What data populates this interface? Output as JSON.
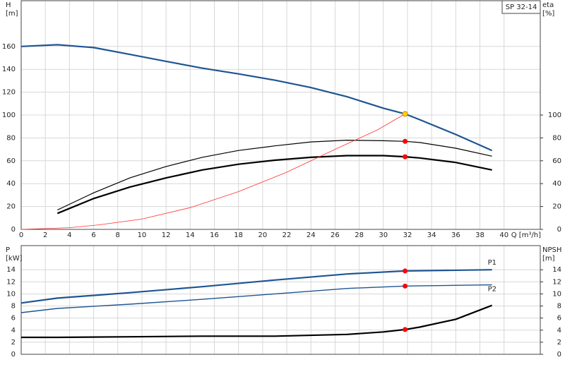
{
  "chart_data": [
    {
      "type": "line",
      "title": "SP 32-14",
      "ylabel": [
        "H",
        "[m]"
      ],
      "y2label": [
        "eta",
        "[%]"
      ],
      "xlabel": "Q [m³/h]",
      "xlim": [
        0,
        43
      ],
      "xticks": [
        0,
        2,
        4,
        6,
        8,
        10,
        12,
        14,
        16,
        18,
        20,
        22,
        24,
        26,
        28,
        30,
        32,
        34,
        36,
        38,
        40
      ],
      "ylim": [
        0,
        200
      ],
      "yticks": [
        0,
        20,
        40,
        60,
        80,
        100,
        120,
        140,
        160
      ],
      "y2lim": [
        0,
        200
      ],
      "y2ticks": [
        0,
        20,
        40,
        60,
        80,
        100
      ],
      "grid": true,
      "series": [
        {
          "color": "#1f5592",
          "width": 2.2,
          "x": [
            0,
            3,
            6,
            9,
            12,
            15,
            18,
            21,
            24,
            27,
            30,
            31.8,
            33,
            36,
            39
          ],
          "values": [
            160,
            161.5,
            159,
            153,
            147,
            141,
            136,
            130.5,
            124,
            116,
            106,
            101,
            96,
            83,
            69
          ]
        },
        {
          "color": "#000000",
          "width": 1.2,
          "axis": "y2",
          "x": [
            3,
            6,
            9,
            12,
            15,
            18,
            21,
            24,
            27,
            30,
            31.8,
            33,
            36,
            39
          ],
          "values": [
            17,
            32,
            45,
            55,
            63,
            69,
            73,
            76.5,
            78,
            77.5,
            77,
            76,
            71,
            64
          ]
        },
        {
          "color": "#000000",
          "width": 2.2,
          "axis": "y2",
          "x": [
            3,
            6,
            9,
            12,
            15,
            18,
            21,
            24,
            27,
            30,
            31.8,
            33,
            36,
            39
          ],
          "values": [
            14,
            27,
            37,
            45,
            52,
            57,
            60.5,
            63,
            64.5,
            64.5,
            63.5,
            62.5,
            58.5,
            52
          ]
        },
        {
          "color": "#ff3030",
          "width": 0.8,
          "x": [
            0,
            4,
            6.5,
            10,
            14,
            18,
            22,
            26,
            29.5,
            31.8
          ],
          "values": [
            0,
            1.5,
            4,
            9,
            19,
            33,
            50,
            70,
            87,
            101
          ]
        }
      ],
      "points": [
        {
          "x": 31.8,
          "y": 101,
          "color": "#ffd400"
        },
        {
          "x": 31.8,
          "y": 77,
          "color": "#ff0000"
        },
        {
          "x": 31.8,
          "y": 63.5,
          "color": "#ff0000"
        }
      ]
    },
    {
      "type": "line",
      "ylabel": [
        "P",
        "[kW]"
      ],
      "y2label": [
        "NPSH",
        "[m]"
      ],
      "xlim": [
        0,
        43
      ],
      "xticks": [
        0,
        2,
        4,
        6,
        8,
        10,
        12,
        14,
        16,
        18,
        20,
        22,
        24,
        26,
        28,
        30,
        32,
        34,
        36,
        38,
        40
      ],
      "ylim": [
        0,
        18
      ],
      "yticks": [
        0,
        2,
        4,
        6,
        8,
        10,
        12,
        14
      ],
      "y2lim": [
        0,
        18
      ],
      "y2ticks": [
        0,
        2,
        4,
        6,
        8,
        10,
        12,
        14
      ],
      "grid": true,
      "series": [
        {
          "name": "P1",
          "color": "#1f5592",
          "width": 2.2,
          "x": [
            0,
            3,
            9,
            15,
            21,
            27,
            31.8,
            39
          ],
          "values": [
            8.5,
            9.3,
            10.2,
            11.2,
            12.3,
            13.3,
            13.8,
            14.0
          ]
        },
        {
          "name": "P2",
          "color": "#1f5592",
          "width": 1.4,
          "x": [
            0,
            3,
            9,
            15,
            21,
            27,
            31.8,
            39
          ],
          "values": [
            6.9,
            7.6,
            8.3,
            9.1,
            10.0,
            10.9,
            11.3,
            11.5
          ]
        },
        {
          "color": "#000000",
          "width": 2.2,
          "axis": "y2",
          "x": [
            0,
            3,
            9,
            15,
            21,
            27,
            30,
            31.8,
            33,
            36,
            39
          ],
          "values": [
            2.8,
            2.8,
            2.9,
            3.0,
            3.0,
            3.3,
            3.7,
            4.1,
            4.5,
            5.8,
            8.1
          ]
        }
      ],
      "points": [
        {
          "x": 31.8,
          "y": 13.8,
          "color": "#ff0000"
        },
        {
          "x": 31.8,
          "y": 11.3,
          "color": "#ff0000"
        },
        {
          "x": 31.8,
          "y": 4.1,
          "color": "#ff0000"
        }
      ]
    }
  ]
}
